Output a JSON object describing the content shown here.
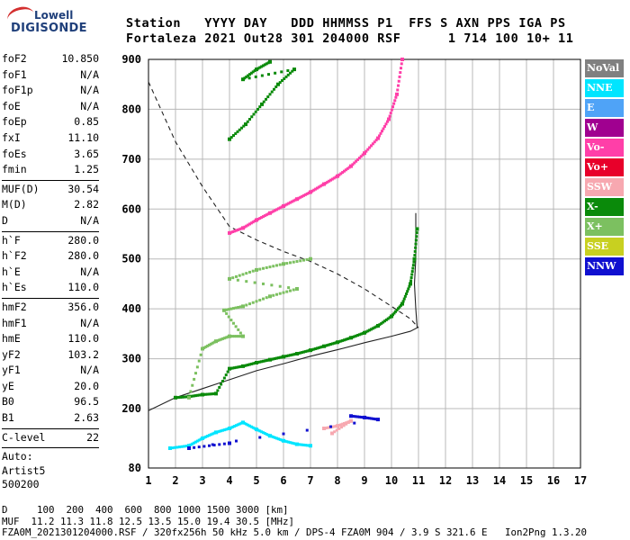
{
  "logo": {
    "line1": "Lowell",
    "line2": "DIGISONDE"
  },
  "header": {
    "row1": "Station   YYYY DAY   DDD HHMMSS P1  FFS S AXN PPS IGA PS",
    "row2": "Fortaleza 2021 Out28 301 204000 RSF      1 714 100 10+ 11"
  },
  "params": {
    "group1": [
      {
        "k": "foF2",
        "v": "10.850"
      },
      {
        "k": "foF1",
        "v": "N/A"
      },
      {
        "k": "foF1p",
        "v": "N/A"
      },
      {
        "k": "foE",
        "v": "N/A"
      },
      {
        "k": "foEp",
        "v": "0.85"
      },
      {
        "k": "fxI",
        "v": "11.10"
      },
      {
        "k": "foEs",
        "v": "3.65"
      },
      {
        "k": "fmin",
        "v": "1.25"
      }
    ],
    "group2": [
      {
        "k": "MUF(D)",
        "v": "30.54"
      },
      {
        "k": "M(D)",
        "v": "2.82"
      },
      {
        "k": "D",
        "v": "N/A"
      }
    ],
    "group3": [
      {
        "k": "h`F",
        "v": "280.0"
      },
      {
        "k": "h`F2",
        "v": "280.0"
      },
      {
        "k": "h`E",
        "v": "N/A"
      },
      {
        "k": "h`Es",
        "v": "110.0"
      }
    ],
    "group4": [
      {
        "k": "hmF2",
        "v": "356.0"
      },
      {
        "k": "hmF1",
        "v": "N/A"
      },
      {
        "k": "hmE",
        "v": "110.0"
      },
      {
        "k": "yF2",
        "v": "103.2"
      },
      {
        "k": "yF1",
        "v": "N/A"
      },
      {
        "k": "yE",
        "v": "20.0"
      },
      {
        "k": "B0",
        "v": "96.5"
      },
      {
        "k": "B1",
        "v": "2.63"
      }
    ],
    "group5": [
      {
        "k": "C-level",
        "v": "22"
      }
    ],
    "auto": [
      "Auto:",
      "Artist5",
      "500200"
    ]
  },
  "legend": [
    {
      "label": "NoVal",
      "color": "#808080"
    },
    {
      "label": "NNE",
      "color": "#00e5ff"
    },
    {
      "label": "E",
      "color": "#4fa3f7"
    },
    {
      "label": "W",
      "color": "#a00090"
    },
    {
      "label": "Vo-",
      "color": "#ff3fa8"
    },
    {
      "label": "Vo+",
      "color": "#e8002a"
    },
    {
      "label": "SSW",
      "color": "#f7a8b0"
    },
    {
      "label": "X-",
      "color": "#0a8a0a"
    },
    {
      "label": "X+",
      "color": "#7cc060"
    },
    {
      "label": "SSE",
      "color": "#c8d020"
    },
    {
      "label": "NNW",
      "color": "#1010d0"
    }
  ],
  "footer": {
    "line1": "D     100  200  400  600  800 1000 1500 3000 [km]",
    "line2": "MUF  11.2 11.3 11.8 12.5 13.5 15.0 19.4 30.5 [MHz]",
    "line3": "FZA0M_2021301204000.RSF / 320fx256h 50 kHz 5.0 km / DPS-4 FZA0M 904 / 3.9 S 321.6 E   Ion2Png 1.3.20"
  },
  "chart_data": {
    "type": "scatter",
    "x_ticks": [
      "1",
      "2",
      "3",
      "4",
      "5",
      "6",
      "7",
      "8",
      "9",
      "10",
      "11",
      "12",
      "13",
      "14",
      "15",
      "16",
      "17"
    ],
    "y_ticks": [
      "80",
      "200",
      "300",
      "400",
      "500",
      "600",
      "700",
      "800",
      "900"
    ],
    "xlim": [
      1,
      17
    ],
    "ylim": [
      80,
      900
    ],
    "grid": true,
    "legend_position": "right",
    "series": [
      {
        "color": "#0a8a0a",
        "points": [
          [
            2.0,
            222
          ],
          [
            2.5,
            224
          ],
          [
            3.0,
            228
          ],
          [
            3.5,
            230
          ],
          [
            4.0,
            280
          ],
          [
            4.5,
            285
          ],
          [
            5.0,
            292
          ],
          [
            5.5,
            298
          ],
          [
            6.0,
            304
          ],
          [
            6.5,
            310
          ],
          [
            7.0,
            317
          ],
          [
            7.5,
            325
          ],
          [
            8.0,
            333
          ],
          [
            8.5,
            342
          ],
          [
            9.0,
            352
          ],
          [
            9.5,
            366
          ],
          [
            10.0,
            385
          ],
          [
            10.4,
            410
          ],
          [
            10.7,
            450
          ],
          [
            10.85,
            500
          ],
          [
            10.95,
            560
          ]
        ]
      },
      {
        "color": "#ff3fa8",
        "points": [
          [
            4.0,
            552
          ],
          [
            4.5,
            562
          ],
          [
            5.0,
            578
          ],
          [
            5.5,
            592
          ],
          [
            6.0,
            606
          ],
          [
            6.5,
            620
          ],
          [
            7.0,
            634
          ],
          [
            7.5,
            650
          ],
          [
            8.0,
            666
          ],
          [
            8.5,
            686
          ],
          [
            9.0,
            712
          ],
          [
            9.5,
            742
          ],
          [
            9.9,
            780
          ],
          [
            10.2,
            830
          ],
          [
            10.4,
            900
          ]
        ]
      },
      {
        "color": "#00e5ff",
        "points": [
          [
            1.8,
            120
          ],
          [
            2.5,
            125
          ],
          [
            3.0,
            140
          ],
          [
            3.5,
            152
          ],
          [
            4.0,
            160
          ],
          [
            4.5,
            172
          ],
          [
            5.0,
            158
          ],
          [
            5.5,
            145
          ],
          [
            6.0,
            135
          ],
          [
            6.5,
            128
          ],
          [
            7.0,
            125
          ]
        ]
      },
      {
        "color": "#7cc060",
        "points": [
          [
            2.5,
            222
          ],
          [
            3.0,
            320
          ],
          [
            3.5,
            335
          ],
          [
            4.0,
            345
          ],
          [
            4.5,
            345
          ],
          [
            3.8,
            397
          ],
          [
            4.5,
            405
          ],
          [
            5.5,
            425
          ],
          [
            6.5,
            440
          ],
          [
            4.0,
            460
          ],
          [
            5.0,
            478
          ],
          [
            6.0,
            490
          ],
          [
            7.0,
            500
          ]
        ]
      },
      {
        "color": "#0a8a0a",
        "points": [
          [
            4.0,
            740
          ],
          [
            4.6,
            770
          ],
          [
            5.2,
            810
          ],
          [
            5.8,
            850
          ],
          [
            6.4,
            880
          ],
          [
            4.5,
            860
          ],
          [
            5.0,
            880
          ],
          [
            5.5,
            895
          ]
        ]
      },
      {
        "color": "#f7a8b0",
        "points": [
          [
            7.5,
            160
          ],
          [
            8.0,
            165
          ],
          [
            8.5,
            175
          ],
          [
            7.8,
            150
          ]
        ]
      },
      {
        "color": "#1010d0",
        "points": [
          [
            8.5,
            185
          ],
          [
            9.0,
            182
          ],
          [
            9.5,
            178
          ],
          [
            2.5,
            120
          ],
          [
            4.0,
            130
          ]
        ]
      }
    ],
    "curves": [
      {
        "name": "solid",
        "points": [
          [
            1,
            196
          ],
          [
            2,
            222
          ],
          [
            3,
            240
          ],
          [
            4,
            258
          ],
          [
            5,
            276
          ],
          [
            6,
            290
          ],
          [
            7,
            305
          ],
          [
            8,
            318
          ],
          [
            9,
            332
          ],
          [
            10,
            345
          ],
          [
            10.7,
            355
          ],
          [
            10.95,
            362
          ],
          [
            10.9,
            400
          ],
          [
            10.85,
            450
          ],
          [
            10.9,
            500
          ],
          [
            10.9,
            560
          ],
          [
            10.9,
            592
          ]
        ]
      },
      {
        "name": "dashed",
        "points": [
          [
            1,
            855
          ],
          [
            1.5,
            795
          ],
          [
            2,
            735
          ],
          [
            2.5,
            690
          ],
          [
            3,
            645
          ],
          [
            3.5,
            605
          ],
          [
            4,
            565
          ],
          [
            5,
            538
          ],
          [
            6,
            515
          ],
          [
            7,
            495
          ],
          [
            8,
            470
          ],
          [
            9,
            440
          ],
          [
            10,
            405
          ],
          [
            10.7,
            380
          ],
          [
            11,
            362
          ]
        ]
      }
    ]
  }
}
